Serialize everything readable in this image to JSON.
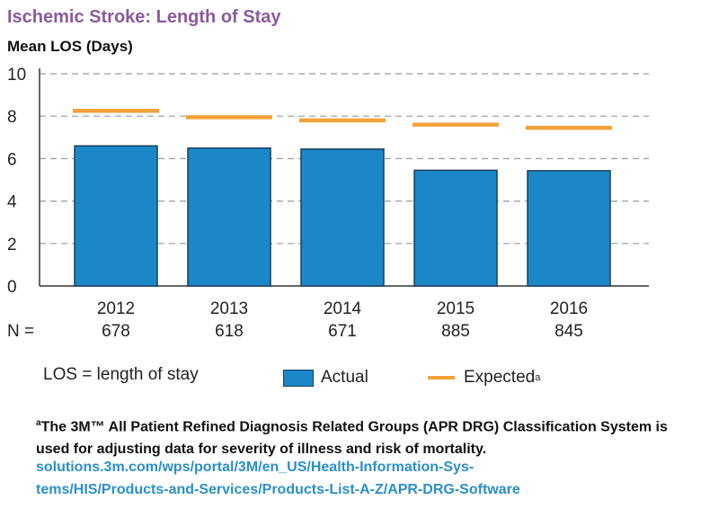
{
  "title": "Ischemic Stroke: Length of Stay",
  "n_label": "N =",
  "legend": {
    "note": "LOS = length of stay",
    "actual": "Actual",
    "expected": "Expected",
    "expected_marker": "a"
  },
  "footnote": {
    "marker": "a",
    "text": "The 3M™ All Patient Refined Diagnosis Related Groups (APR DRG) Classification System is used for adjusting data for severity of illness and risk of mortality.",
    "link_line1": "solutions.3m.com/wps/portal/3M/en_US/Health-Information-Sys-",
    "link_line2": "tems/HIS/Products-and-Services/Products-List-A-Z/APR-DRG-Software"
  },
  "colors": {
    "title": "#8a5a9c",
    "actual_bar": "#1a87c8",
    "bar_outline": "#1b3f5e",
    "expected_line": "#f3a23a",
    "link": "#2a8fc7"
  },
  "chart_data": {
    "type": "bar",
    "title": "Ischemic Stroke: Length of Stay",
    "ylabel": "Mean LOS (Days)",
    "xlabel": "",
    "ylim": [
      0,
      10
    ],
    "yticks": [
      0,
      2,
      4,
      6,
      8,
      10
    ],
    "grid": true,
    "legend_position": "bottom",
    "categories": [
      "2012",
      "2013",
      "2014",
      "2015",
      "2016"
    ],
    "n_values": [
      "678",
      "618",
      "671",
      "885",
      "845"
    ],
    "series": [
      {
        "name": "Actual",
        "type": "bar",
        "values": [
          6.6,
          6.5,
          6.45,
          5.45,
          5.43
        ]
      },
      {
        "name": "Expected",
        "type": "marker-line",
        "values": [
          8.25,
          7.95,
          7.8,
          7.6,
          7.45
        ]
      }
    ]
  }
}
